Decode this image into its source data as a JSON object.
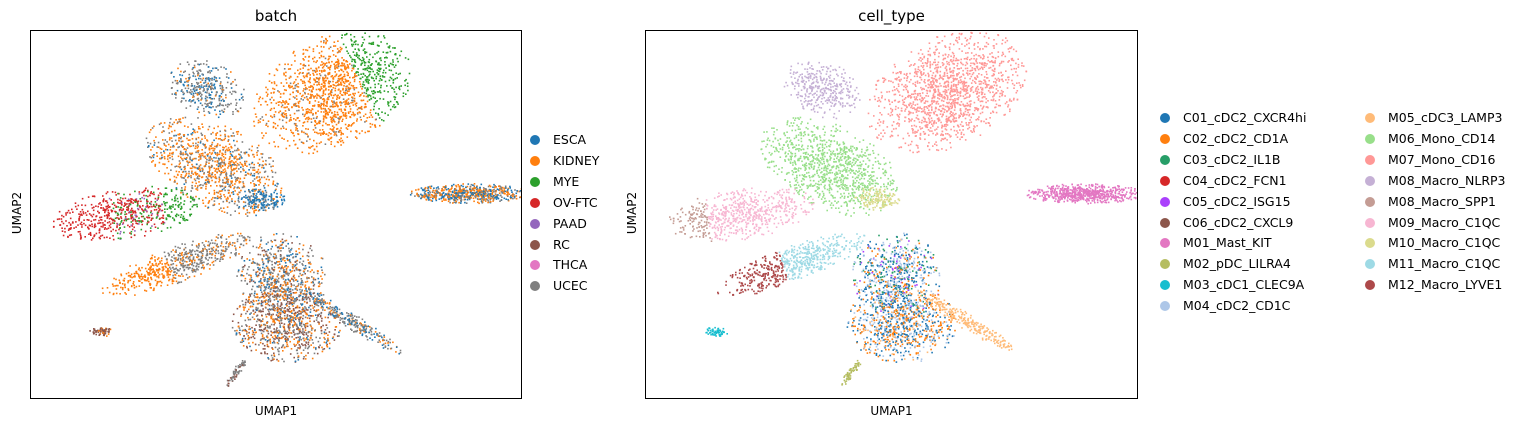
{
  "chart_data": [
    {
      "type": "scatter",
      "title": "batch",
      "xlabel": "UMAP1",
      "ylabel": "UMAP2",
      "grid": false,
      "legend_position": "right",
      "legend_columns": 1,
      "series": [
        {
          "name": "ESCA",
          "color": "#1f77b4"
        },
        {
          "name": "KIDNEY",
          "color": "#ff7f0e"
        },
        {
          "name": "MYE",
          "color": "#2ca02c"
        },
        {
          "name": "OV-FTC",
          "color": "#d62728"
        },
        {
          "name": "PAAD",
          "color": "#9467bd"
        },
        {
          "name": "RC",
          "color": "#8c564b"
        },
        {
          "name": "THCA",
          "color": "#e377c2"
        },
        {
          "name": "UCEC",
          "color": "#7f7f7f"
        }
      ]
    },
    {
      "type": "scatter",
      "title": "cell_type",
      "xlabel": "UMAP1",
      "ylabel": "UMAP2",
      "grid": false,
      "legend_position": "right",
      "legend_columns": 2,
      "series": [
        {
          "name": "C01_cDC2_CXCR4hi",
          "color": "#1f77b4"
        },
        {
          "name": "C02_cDC2_CD1A",
          "color": "#ff7f0e"
        },
        {
          "name": "C03_cDC2_IL1B",
          "color": "#279e68"
        },
        {
          "name": "C04_cDC2_FCN1",
          "color": "#d62728"
        },
        {
          "name": "C05_cDC2_ISG15",
          "color": "#aa40fc"
        },
        {
          "name": "C06_cDC2_CXCL9",
          "color": "#8c564b"
        },
        {
          "name": "M01_Mast_KIT",
          "color": "#e377c2"
        },
        {
          "name": "M02_pDC_LILRA4",
          "color": "#b5bd61"
        },
        {
          "name": "M03_cDC1_CLEC9A",
          "color": "#17becf"
        },
        {
          "name": "M04_cDC2_CD1C",
          "color": "#aec7e8"
        },
        {
          "name": "M05_cDC3_LAMP3",
          "color": "#ffbb78"
        },
        {
          "name": "M06_Mono_CD14",
          "color": "#98df8a"
        },
        {
          "name": "M07_Mono_CD16",
          "color": "#ff9896"
        },
        {
          "name": "M08_Macro_NLRP3",
          "color": "#c5b0d5"
        },
        {
          "name": "M08_Macro_SPP1",
          "color": "#c49c94"
        },
        {
          "name": "M09_Macro_C1QC",
          "color": "#f7b6d2"
        },
        {
          "name": "M10_Macro_C1QC",
          "color": "#dbdb8d"
        },
        {
          "name": "M11_Macro_C1QC",
          "color": "#9edae5"
        },
        {
          "name": "M12_Macro_LYVE1",
          "color": "#ad494a"
        }
      ]
    }
  ]
}
